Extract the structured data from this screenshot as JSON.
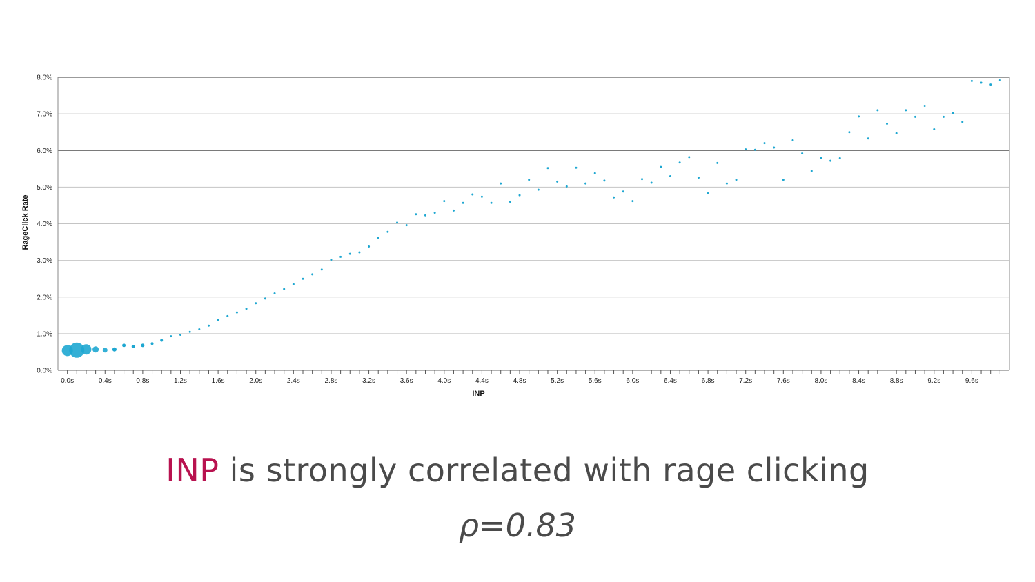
{
  "chart_data": {
    "type": "scatter",
    "xlabel": "INP",
    "ylabel": "RageClick Rate",
    "xlim": [
      -0.1,
      10.0
    ],
    "ylim": [
      0,
      8.0
    ],
    "x_tick_labels": [
      "0.0s",
      "0.4s",
      "0.8s",
      "1.2s",
      "1.6s",
      "2.0s",
      "2.4s",
      "2.8s",
      "3.2s",
      "3.6s",
      "4.0s",
      "4.4s",
      "4.8s",
      "5.2s",
      "5.6s",
      "6.0s",
      "6.4s",
      "6.8s",
      "7.2s",
      "7.6s",
      "8.0s",
      "8.4s",
      "8.8s",
      "9.2s",
      "9.6s"
    ],
    "x_ticks": [
      0,
      0.4,
      0.8,
      1.2,
      1.6,
      2.0,
      2.4,
      2.8,
      3.2,
      3.6,
      4.0,
      4.4,
      4.8,
      5.2,
      5.6,
      6.0,
      6.4,
      6.8,
      7.2,
      7.6,
      8.0,
      8.4,
      8.8,
      9.2,
      9.6
    ],
    "y_tick_labels": [
      "0.0%",
      "1.0%",
      "2.0%",
      "3.0%",
      "4.0%",
      "5.0%",
      "6.0%",
      "7.0%",
      "8.0%"
    ],
    "y_ticks": [
      0,
      1,
      2,
      3,
      4,
      5,
      6,
      7,
      8
    ],
    "grid": true,
    "point_color": "#1ea7d1",
    "points": [
      [
        0.0,
        0.54,
        16
      ],
      [
        0.1,
        0.55,
        22
      ],
      [
        0.2,
        0.57,
        15
      ],
      [
        0.3,
        0.57,
        9
      ],
      [
        0.4,
        0.55,
        7
      ],
      [
        0.5,
        0.57,
        6
      ],
      [
        0.6,
        0.68,
        5
      ],
      [
        0.7,
        0.65,
        5
      ],
      [
        0.8,
        0.68,
        5
      ],
      [
        0.9,
        0.73,
        4
      ],
      [
        1.0,
        0.82,
        4
      ],
      [
        1.1,
        0.93,
        3
      ],
      [
        1.2,
        0.97,
        3
      ],
      [
        1.3,
        1.05,
        3
      ],
      [
        1.4,
        1.12,
        3
      ],
      [
        1.5,
        1.22,
        3
      ],
      [
        1.6,
        1.38,
        3
      ],
      [
        1.7,
        1.48,
        3
      ],
      [
        1.8,
        1.58,
        3
      ],
      [
        1.9,
        1.68,
        3
      ],
      [
        2.0,
        1.83,
        3
      ],
      [
        2.1,
        1.96,
        3
      ],
      [
        2.2,
        2.1,
        3
      ],
      [
        2.3,
        2.22,
        3
      ],
      [
        2.4,
        2.35,
        3
      ],
      [
        2.5,
        2.5,
        3
      ],
      [
        2.6,
        2.62,
        3
      ],
      [
        2.7,
        2.75,
        3
      ],
      [
        2.8,
        3.02,
        3
      ],
      [
        2.9,
        3.1,
        3
      ],
      [
        3.0,
        3.18,
        3
      ],
      [
        3.1,
        3.22,
        3
      ],
      [
        3.2,
        3.38,
        3
      ],
      [
        3.3,
        3.62,
        3
      ],
      [
        3.4,
        3.78,
        3
      ],
      [
        3.5,
        4.03,
        3
      ],
      [
        3.6,
        3.96,
        3
      ],
      [
        3.7,
        4.26,
        3
      ],
      [
        3.8,
        4.23,
        3
      ],
      [
        3.9,
        4.3,
        3
      ],
      [
        4.0,
        4.62,
        3
      ],
      [
        4.1,
        4.36,
        3
      ],
      [
        4.2,
        4.57,
        3
      ],
      [
        4.3,
        4.8,
        3
      ],
      [
        4.4,
        4.74,
        3
      ],
      [
        4.5,
        4.57,
        3
      ],
      [
        4.6,
        5.1,
        3
      ],
      [
        4.7,
        4.6,
        3
      ],
      [
        4.8,
        4.78,
        3
      ],
      [
        4.9,
        5.2,
        3
      ],
      [
        5.0,
        4.93,
        3
      ],
      [
        5.1,
        5.52,
        3
      ],
      [
        5.2,
        5.15,
        3
      ],
      [
        5.3,
        5.02,
        3
      ],
      [
        5.4,
        5.53,
        3
      ],
      [
        5.5,
        5.1,
        3
      ],
      [
        5.6,
        5.38,
        3
      ],
      [
        5.7,
        5.18,
        3
      ],
      [
        5.8,
        4.72,
        3
      ],
      [
        5.9,
        4.88,
        3
      ],
      [
        6.0,
        4.62,
        3
      ],
      [
        6.1,
        5.22,
        3
      ],
      [
        6.2,
        5.12,
        3
      ],
      [
        6.3,
        5.55,
        3
      ],
      [
        6.4,
        5.3,
        3
      ],
      [
        6.5,
        5.67,
        3
      ],
      [
        6.6,
        5.82,
        3
      ],
      [
        6.7,
        5.26,
        3
      ],
      [
        6.8,
        4.83,
        3
      ],
      [
        6.9,
        5.66,
        3
      ],
      [
        7.0,
        5.1,
        3
      ],
      [
        7.1,
        5.2,
        3
      ],
      [
        7.2,
        6.03,
        3
      ],
      [
        7.3,
        6.02,
        3
      ],
      [
        7.4,
        6.2,
        3
      ],
      [
        7.5,
        6.08,
        3
      ],
      [
        7.6,
        5.2,
        3
      ],
      [
        7.7,
        6.28,
        3
      ],
      [
        7.8,
        5.92,
        3
      ],
      [
        7.9,
        5.44,
        3
      ],
      [
        8.0,
        5.8,
        3
      ],
      [
        8.1,
        5.72,
        3
      ],
      [
        8.2,
        5.79,
        3
      ],
      [
        8.3,
        6.5,
        3
      ],
      [
        8.4,
        6.93,
        3
      ],
      [
        8.5,
        6.33,
        3
      ],
      [
        8.6,
        7.1,
        3
      ],
      [
        8.7,
        6.73,
        3
      ],
      [
        8.8,
        6.47,
        3
      ],
      [
        8.9,
        7.1,
        3
      ],
      [
        9.0,
        6.92,
        3
      ],
      [
        9.1,
        7.22,
        3
      ],
      [
        9.2,
        6.58,
        3
      ],
      [
        9.3,
        6.92,
        3
      ],
      [
        9.4,
        7.02,
        3
      ],
      [
        9.5,
        6.78,
        3
      ],
      [
        9.6,
        7.9,
        3
      ],
      [
        9.7,
        7.85,
        3
      ],
      [
        9.8,
        7.8,
        3
      ],
      [
        9.9,
        7.92,
        3
      ]
    ]
  },
  "caption": {
    "highlight": "INP",
    "rest": " is strongly correlated with rage clicking",
    "highlight_color": "#b8124f",
    "rho": "ρ=0.83"
  }
}
